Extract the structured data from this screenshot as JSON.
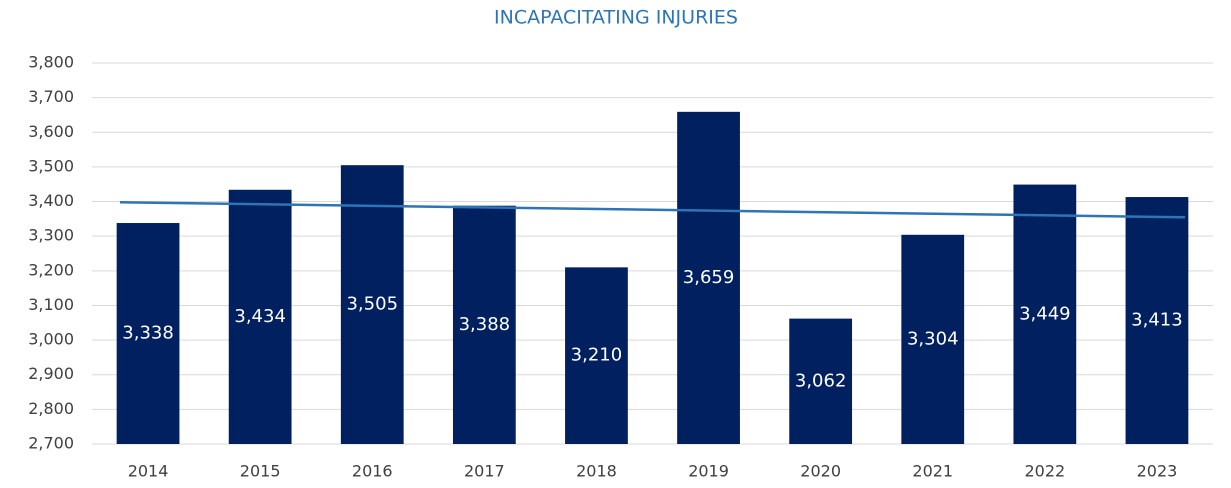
{
  "chart_data": {
    "type": "bar",
    "title": "INCAPACITATING INJURIES",
    "categories": [
      "2014",
      "2015",
      "2016",
      "2017",
      "2018",
      "2019",
      "2020",
      "2021",
      "2022",
      "2023"
    ],
    "values": [
      3338,
      3434,
      3505,
      3388,
      3210,
      3659,
      3062,
      3304,
      3449,
      3413
    ],
    "value_labels": [
      "3,338",
      "3,434",
      "3,505",
      "3,388",
      "3,210",
      "3,659",
      "3,062",
      "3,304",
      "3,449",
      "3,413"
    ],
    "color": "#002060",
    "trendline": "linear",
    "trendline_color": "#2e75b6",
    "ylim": [
      2700,
      3800
    ],
    "yticks": [
      {
        "value": 2700,
        "label": "2,700"
      },
      {
        "value": 2800,
        "label": "2,800"
      },
      {
        "value": 2900,
        "label": "2,900"
      },
      {
        "value": 3000,
        "label": "3,000"
      },
      {
        "value": 3100,
        "label": "3,100"
      },
      {
        "value": 3200,
        "label": "3,200"
      },
      {
        "value": 3300,
        "label": "3,300"
      },
      {
        "value": 3400,
        "label": "3,400"
      },
      {
        "value": 3500,
        "label": "3,500"
      },
      {
        "value": 3600,
        "label": "3,600"
      },
      {
        "value": 3700,
        "label": "3,700"
      },
      {
        "value": 3800,
        "label": "3,800"
      }
    ],
    "grid": true
  }
}
